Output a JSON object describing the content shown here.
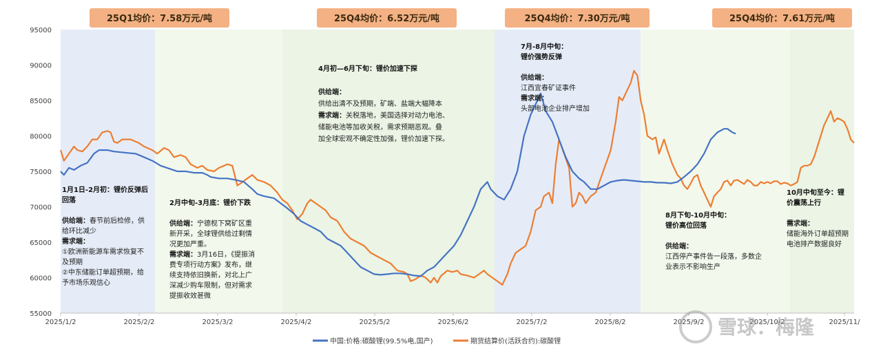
{
  "chart_data": {
    "type": "line",
    "ylim": [
      55000,
      95000
    ],
    "yticks": [
      "55000",
      "60000",
      "65000",
      "70000",
      "75000",
      "80000",
      "85000",
      "90000",
      "95000"
    ],
    "xticks": [
      "2025/1/2",
      "2025/2/2",
      "2025/3/2",
      "2025/4/2",
      "2025/5/2",
      "2025/6/2",
      "2025/7/2",
      "2025/8/2",
      "2025/9/2",
      "2025/10/2",
      "2025/11/"
    ],
    "series": [
      {
        "name": "中国:价格:碳酸锂(99.5%电,国产)",
        "color": "#4472C4",
        "points": [
          [
            0,
            75000
          ],
          [
            2,
            74500
          ],
          [
            5,
            75500
          ],
          [
            8,
            75200
          ],
          [
            12,
            75800
          ],
          [
            16,
            76200
          ],
          [
            20,
            77500
          ],
          [
            23,
            78000
          ],
          [
            28,
            78000
          ],
          [
            32,
            77800
          ],
          [
            40,
            77600
          ],
          [
            45,
            77500
          ],
          [
            48,
            77200
          ],
          [
            55,
            76500
          ],
          [
            60,
            75800
          ],
          [
            65,
            75400
          ],
          [
            70,
            75000
          ],
          [
            75,
            75000
          ],
          [
            80,
            74800
          ],
          [
            85,
            74800
          ],
          [
            88,
            74500
          ],
          [
            90,
            74200
          ],
          [
            95,
            74000
          ],
          [
            100,
            74000
          ],
          [
            105,
            73800
          ],
          [
            110,
            73500
          ],
          [
            115,
            72500
          ],
          [
            118,
            71800
          ],
          [
            122,
            71500
          ],
          [
            128,
            71200
          ],
          [
            132,
            70500
          ],
          [
            136,
            69800
          ],
          [
            140,
            69000
          ],
          [
            144,
            68000
          ],
          [
            148,
            67500
          ],
          [
            152,
            67000
          ],
          [
            156,
            66500
          ],
          [
            160,
            65500
          ],
          [
            164,
            65000
          ],
          [
            168,
            64500
          ],
          [
            172,
            63500
          ],
          [
            176,
            62500
          ],
          [
            180,
            61500
          ],
          [
            184,
            61000
          ],
          [
            188,
            60500
          ],
          [
            192,
            60400
          ],
          [
            196,
            60500
          ],
          [
            200,
            60600
          ],
          [
            204,
            60600
          ],
          [
            208,
            60500
          ],
          [
            212,
            60300
          ],
          [
            216,
            60200
          ],
          [
            220,
            61000
          ],
          [
            224,
            61500
          ],
          [
            228,
            62500
          ],
          [
            232,
            63500
          ],
          [
            236,
            64500
          ],
          [
            240,
            66000
          ],
          [
            244,
            68000
          ],
          [
            248,
            70000
          ],
          [
            252,
            72500
          ],
          [
            256,
            73500
          ],
          [
            258,
            72500
          ],
          [
            262,
            71500
          ],
          [
            266,
            71000
          ],
          [
            270,
            72500
          ],
          [
            274,
            75000
          ],
          [
            278,
            80000
          ],
          [
            282,
            83000
          ],
          [
            286,
            85000
          ],
          [
            288,
            86000
          ],
          [
            291,
            83500
          ],
          [
            295,
            82000
          ],
          [
            299,
            79500
          ],
          [
            303,
            77000
          ],
          [
            307,
            75000
          ],
          [
            311,
            74000
          ],
          [
            314,
            73500
          ],
          [
            318,
            72500
          ],
          [
            322,
            72500
          ],
          [
            326,
            73000
          ],
          [
            330,
            73500
          ],
          [
            334,
            73700
          ],
          [
            338,
            73800
          ],
          [
            342,
            73700
          ],
          [
            346,
            73600
          ],
          [
            350,
            73500
          ],
          [
            354,
            73500
          ],
          [
            358,
            73400
          ],
          [
            362,
            73400
          ],
          [
            366,
            73300
          ],
          [
            370,
            73500
          ],
          [
            374,
            74200
          ],
          [
            378,
            75000
          ],
          [
            382,
            76000
          ],
          [
            386,
            77500
          ],
          [
            390,
            79500
          ],
          [
            394,
            80500
          ],
          [
            398,
            81000
          ],
          [
            400,
            81000
          ],
          [
            403,
            80500
          ],
          [
            405,
            80300
          ]
        ]
      },
      {
        "name": "期货结算价(活跃合约):碳酸锂",
        "color": "#ED7D31",
        "points": [
          [
            0,
            78000
          ],
          [
            2,
            76500
          ],
          [
            5,
            77500
          ],
          [
            8,
            78500
          ],
          [
            10,
            78000
          ],
          [
            13,
            77800
          ],
          [
            16,
            78500
          ],
          [
            19,
            79500
          ],
          [
            22,
            79500
          ],
          [
            25,
            80500
          ],
          [
            28,
            80700
          ],
          [
            30,
            80500
          ],
          [
            32,
            79200
          ],
          [
            34,
            79000
          ],
          [
            37,
            79500
          ],
          [
            42,
            79500
          ],
          [
            47,
            79000
          ],
          [
            50,
            78500
          ],
          [
            55,
            78000
          ],
          [
            58,
            77500
          ],
          [
            62,
            78300
          ],
          [
            65,
            78000
          ],
          [
            68,
            77000
          ],
          [
            72,
            77300
          ],
          [
            75,
            77000
          ],
          [
            78,
            76000
          ],
          [
            82,
            75500
          ],
          [
            85,
            75800
          ],
          [
            88,
            75200
          ],
          [
            92,
            75000
          ],
          [
            95,
            75500
          ],
          [
            100,
            76000
          ],
          [
            103,
            75800
          ],
          [
            106,
            73000
          ],
          [
            108,
            73300
          ],
          [
            112,
            74000
          ],
          [
            115,
            74500
          ],
          [
            118,
            73800
          ],
          [
            122,
            73500
          ],
          [
            126,
            73000
          ],
          [
            130,
            72000
          ],
          [
            133,
            71000
          ],
          [
            136,
            70500
          ],
          [
            139,
            69500
          ],
          [
            142,
            68200
          ],
          [
            145,
            69000
          ],
          [
            148,
            70500
          ],
          [
            150,
            71000
          ],
          [
            153,
            70500
          ],
          [
            156,
            70000
          ],
          [
            159,
            69500
          ],
          [
            162,
            68500
          ],
          [
            166,
            68000
          ],
          [
            170,
            66500
          ],
          [
            174,
            65500
          ],
          [
            178,
            65000
          ],
          [
            182,
            64500
          ],
          [
            186,
            63500
          ],
          [
            190,
            63000
          ],
          [
            194,
            62500
          ],
          [
            198,
            62000
          ],
          [
            202,
            61000
          ],
          [
            206,
            60800
          ],
          [
            208,
            60500
          ],
          [
            210,
            59500
          ],
          [
            213,
            59800
          ],
          [
            216,
            60300
          ],
          [
            219,
            60000
          ],
          [
            222,
            59300
          ],
          [
            224,
            60000
          ],
          [
            226,
            59300
          ],
          [
            228,
            60200
          ],
          [
            232,
            61000
          ],
          [
            235,
            60800
          ],
          [
            238,
            61000
          ],
          [
            240,
            60500
          ],
          [
            244,
            60300
          ],
          [
            248,
            60000
          ],
          [
            251,
            60500
          ],
          [
            254,
            61000
          ],
          [
            256,
            60500
          ],
          [
            259,
            60000
          ],
          [
            262,
            59500
          ],
          [
            265,
            59000
          ],
          [
            268,
            60500
          ],
          [
            270,
            62000
          ],
          [
            273,
            63500
          ],
          [
            276,
            64000
          ],
          [
            279,
            64500
          ],
          [
            282,
            66500
          ],
          [
            285,
            69500
          ],
          [
            288,
            70000
          ],
          [
            290,
            71500
          ],
          [
            293,
            72000
          ],
          [
            295,
            70500
          ],
          [
            297,
            76000
          ],
          [
            299,
            79500
          ],
          [
            302,
            77500
          ],
          [
            305,
            75500
          ],
          [
            307,
            70000
          ],
          [
            309,
            70500
          ],
          [
            311,
            72000
          ],
          [
            313,
            71500
          ],
          [
            315,
            70500
          ],
          [
            318,
            71500
          ],
          [
            321,
            72000
          ],
          [
            324,
            74000
          ],
          [
            327,
            76000
          ],
          [
            330,
            78000
          ],
          [
            333,
            82000
          ],
          [
            335,
            85500
          ],
          [
            337,
            85000
          ],
          [
            339,
            86000
          ],
          [
            342,
            87500
          ],
          [
            344,
            89200
          ],
          [
            346,
            88500
          ],
          [
            348,
            85000
          ],
          [
            350,
            83000
          ],
          [
            352,
            80000
          ],
          [
            355,
            79500
          ],
          [
            357,
            79800
          ],
          [
            359,
            77500
          ],
          [
            362,
            79500
          ],
          [
            364,
            78000
          ],
          [
            367,
            76000
          ],
          [
            370,
            74500
          ],
          [
            372,
            74000
          ],
          [
            374,
            73000
          ],
          [
            376,
            72500
          ],
          [
            378,
            73300
          ],
          [
            380,
            74200
          ],
          [
            382,
            74500
          ],
          [
            384,
            73000
          ],
          [
            386,
            72000
          ],
          [
            388,
            71000
          ],
          [
            390,
            70000
          ],
          [
            392,
            71500
          ],
          [
            394,
            72000
          ],
          [
            396,
            72500
          ],
          [
            398,
            73500
          ],
          [
            400,
            73700
          ],
          [
            402,
            73000
          ],
          [
            404,
            73700
          ],
          [
            406,
            73800
          ],
          [
            408,
            73500
          ],
          [
            410,
            73200
          ],
          [
            412,
            73800
          ],
          [
            414,
            73500
          ],
          [
            416,
            73000
          ],
          [
            418,
            73000
          ],
          [
            420,
            73500
          ],
          [
            422,
            73300
          ],
          [
            424,
            73500
          ],
          [
            426,
            73300
          ],
          [
            428,
            73600
          ],
          [
            430,
            73600
          ],
          [
            432,
            73200
          ],
          [
            434,
            73400
          ],
          [
            436,
            73300
          ],
          [
            438,
            73000
          ],
          [
            440,
            73200
          ],
          [
            442,
            73500
          ],
          [
            444,
            75500
          ],
          [
            446,
            75800
          ],
          [
            448,
            75800
          ],
          [
            450,
            76000
          ],
          [
            452,
            77000
          ],
          [
            454,
            78500
          ],
          [
            456,
            80000
          ],
          [
            458,
            81500
          ],
          [
            460,
            82500
          ],
          [
            462,
            83500
          ],
          [
            464,
            82000
          ],
          [
            466,
            82500
          ],
          [
            468,
            82300
          ],
          [
            470,
            82000
          ],
          [
            472,
            81000
          ],
          [
            474,
            79500
          ],
          [
            476,
            79000
          ]
        ]
      }
    ],
    "badges": [
      "25Q1均价：7.58万元/吨",
      "25Q4均价：6.52万元/吨",
      "25Q4均价：7.30万元/吨",
      "25Q4均价：7.61万元/吨"
    ],
    "annotations": [
      [
        "1月1日-2月初：锂价反弹后",
        "回落",
        "",
        "供给端：春节前后检修，供",
        "给环比减少",
        "需求端：",
        "①欧洲新能源车需求恢复不",
        "及预期",
        "②中东储能订单超预期，给",
        "予市场乐观信心"
      ],
      [
        "2月中旬-3月底：锂价下跌",
        "",
        "供给端：宁德枧下窝矿区重",
        "新开采，全球锂供给过剩情",
        "况更加严重。",
        "需求端：3月16日，《提振消",
        "费专项行动方案》发布，继",
        "续支持依旧换新，对北上广",
        "深减少购车限制，但对需求",
        "提振收效甚微"
      ],
      [
        "4月初—6月下旬：锂价加速下探",
        "",
        "供给端：",
        "供给出清不及预期，矿端、盐端大幅降本",
        "需求端：关税落地，美国选择对动力电池、",
        "储能电池等加收关税，需求预期恶观。叠",
        "加全球宏观不确定性加强，锂价加速下探。"
      ],
      [
        "7月-8月中旬：",
        "锂价强势反弹",
        "",
        "供给端：",
        "江西宜春矿证事件",
        "需求端：",
        "头部电池企业排产增加"
      ],
      [
        "8月下旬-10月中旬：",
        "锂价高位回落",
        "",
        "供给端：",
        "江西停产事件告一段落，多数企",
        "业表示不影响生产"
      ],
      [
        "10月中旬至今：锂",
        "价震荡上行",
        "",
        "需求端：",
        "储能海外订单超预期",
        "电池排产数据良好"
      ]
    ],
    "watermark": "雪球：梅隆"
  }
}
